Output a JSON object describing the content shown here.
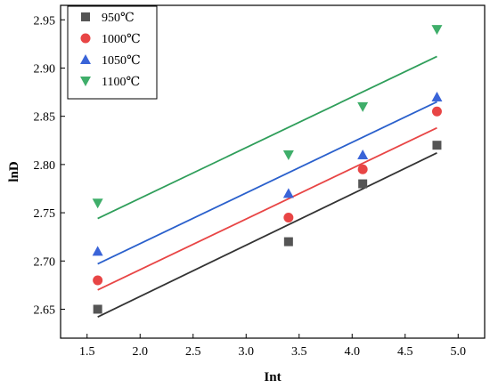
{
  "chart_data": {
    "type": "scatter",
    "xlabel": "Int",
    "ylabel": "lnD",
    "xlim": [
      1.25,
      5.25
    ],
    "ylim": [
      2.62,
      2.965
    ],
    "xticks": [
      1.5,
      2.0,
      2.5,
      3.0,
      3.5,
      4.0,
      4.5,
      5.0
    ],
    "xtick_labels": [
      "1.5",
      "2.0",
      "2.5",
      "3.0",
      "3.5",
      "4.0",
      "4.5",
      "5.0"
    ],
    "yticks": [
      2.65,
      2.7,
      2.75,
      2.8,
      2.85,
      2.9,
      2.95
    ],
    "ytick_labels": [
      "2.65",
      "2.70",
      "2.75",
      "2.80",
      "2.85",
      "2.90",
      "2.95"
    ],
    "grid": false,
    "legend_position": "top-left",
    "series": [
      {
        "name": "950℃",
        "marker": "square",
        "color": "#555555",
        "line_color": "#333333",
        "x": [
          1.6,
          3.4,
          4.1,
          4.8
        ],
        "y": [
          2.65,
          2.72,
          2.78,
          2.82
        ],
        "fit": {
          "x": [
            1.6,
            4.8
          ],
          "y": [
            2.642,
            2.812
          ]
        }
      },
      {
        "name": "1000℃",
        "marker": "circle",
        "color": "#e84545",
        "line_color": "#e84545",
        "x": [
          1.6,
          3.4,
          4.1,
          4.8
        ],
        "y": [
          2.68,
          2.745,
          2.795,
          2.855
        ],
        "fit": {
          "x": [
            1.6,
            4.8
          ],
          "y": [
            2.67,
            2.838
          ]
        }
      },
      {
        "name": "1050℃",
        "marker": "triangle-up",
        "color": "#3a64d8",
        "line_color": "#2a60cc",
        "x": [
          1.6,
          3.4,
          4.1,
          4.8
        ],
        "y": [
          2.71,
          2.77,
          2.81,
          2.87
        ],
        "fit": {
          "x": [
            1.6,
            4.8
          ],
          "y": [
            2.697,
            2.865
          ]
        }
      },
      {
        "name": "1100℃",
        "marker": "triangle-down",
        "color": "#3fae6a",
        "line_color": "#2f9e5a",
        "x": [
          1.6,
          3.4,
          4.1,
          4.8
        ],
        "y": [
          2.76,
          2.81,
          2.86,
          2.94
        ],
        "fit": {
          "x": [
            1.6,
            4.8
          ],
          "y": [
            2.744,
            2.912
          ]
        }
      }
    ]
  }
}
